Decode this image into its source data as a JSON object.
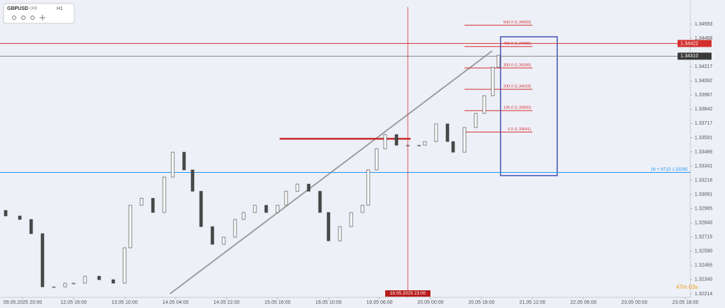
{
  "chart_data": {
    "type": "candlestick",
    "symbol": "GBPUSD",
    "instrument_type": "CFD",
    "timeframe": "H1",
    "countdown": "47m 03s",
    "x": [
      -6,
      -1,
      3,
      7,
      11,
      15,
      18,
      22,
      27,
      32,
      36,
      38,
      42,
      46,
      50,
      53,
      57,
      60,
      63,
      67,
      71,
      75,
      78,
      82,
      86,
      90,
      93,
      97,
      101,
      105,
      108,
      112,
      116,
      120,
      122,
      125,
      128,
      132,
      136,
      140,
      142,
      146,
      150,
      152,
      156,
      160,
      163,
      166,
      168
    ],
    "open": [
      1.3295,
      1.32901,
      1.3287,
      1.32745,
      1.32276,
      1.32276,
      1.32308,
      1.32308,
      1.3237,
      1.32339,
      1.32308,
      1.3262,
      1.32995,
      1.33057,
      1.32932,
      1.33244,
      1.33463,
      1.33307,
      1.33119,
      1.32807,
      1.32651,
      1.32714,
      1.3287,
      1.32932,
      1.32995,
      1.32932,
      1.32995,
      1.33119,
      1.33182,
      1.33119,
      1.32932,
      1.32682,
      1.32807,
      1.32932,
      1.32995,
      1.33307,
      1.33494,
      1.33619,
      1.33525,
      1.33525,
      1.33525,
      1.33557,
      1.33713,
      1.33557,
      1.33463,
      1.33681,
      1.33806,
      1.33962,
      1.34212
    ],
    "close": [
      1.32901,
      1.3287,
      1.32745,
      1.32276,
      1.32276,
      1.32308,
      1.32308,
      1.3237,
      1.32339,
      1.32308,
      1.3262,
      1.32995,
      1.33057,
      1.32932,
      1.33244,
      1.33463,
      1.33307,
      1.33119,
      1.32807,
      1.32651,
      1.32714,
      1.3287,
      1.32932,
      1.32995,
      1.32932,
      1.32995,
      1.33119,
      1.33182,
      1.33119,
      1.32932,
      1.32682,
      1.32807,
      1.32932,
      1.32995,
      1.33307,
      1.33494,
      1.33619,
      1.33525,
      1.33525,
      1.33525,
      1.33557,
      1.33713,
      1.33557,
      1.33463,
      1.33681,
      1.33806,
      1.33962,
      1.34212,
      1.34318
    ],
    "up_color": "#ffffff",
    "down_color": "#4a4a4a",
    "xlim": [
      -8,
      235.75
    ],
    "xticks": [
      {
        "value": 0,
        "label": "09.05.2025 20:00"
      },
      {
        "value": 18,
        "label": "12.05 16:00"
      },
      {
        "value": 36,
        "label": "13.05 10:00"
      },
      {
        "value": 54,
        "label": "14.05 04:00"
      },
      {
        "value": 72,
        "label": "14.05 22:00"
      },
      {
        "value": 90,
        "label": "15.05 16:00"
      },
      {
        "value": 108,
        "label": "16.05 10:00"
      },
      {
        "value": 126,
        "label": "19.05 06:00"
      },
      {
        "value": 144,
        "label": "20.05 00:00"
      },
      {
        "value": 162,
        "label": "20.05 18:00"
      },
      {
        "value": 180,
        "label": "21.05 12:00"
      },
      {
        "value": 198,
        "label": "22.05 06:00"
      },
      {
        "value": 216,
        "label": "23.05 00:00"
      },
      {
        "value": 234,
        "label": "23.05 18:00"
      }
    ],
    "ylim": [
      1.32183,
      1.34743
    ],
    "yticks": [
      {
        "value": 1.34593,
        "label": "1.34593"
      },
      {
        "value": 1.34468,
        "label": "1.34468"
      },
      {
        "value": 1.34217,
        "label": "1.34217"
      },
      {
        "value": 1.34092,
        "label": "1.34092"
      },
      {
        "value": 1.33967,
        "label": "1.33967"
      },
      {
        "value": 1.33842,
        "label": "1.33842"
      },
      {
        "value": 1.33717,
        "label": "1.33717"
      },
      {
        "value": 1.33591,
        "label": "1.33591"
      },
      {
        "value": 1.33466,
        "label": "1.33466"
      },
      {
        "value": 1.33341,
        "label": "1.33341"
      },
      {
        "value": 1.33216,
        "label": "1.33216"
      },
      {
        "value": 1.33091,
        "label": "1.33091"
      },
      {
        "value": 1.32965,
        "label": "1.32965"
      },
      {
        "value": 1.3284,
        "label": "1.32840"
      },
      {
        "value": 1.32715,
        "label": "1.32715"
      },
      {
        "value": 1.3259,
        "label": "1.32590"
      },
      {
        "value": 1.32465,
        "label": "1.32465"
      },
      {
        "value": 1.3234,
        "label": "1.32340"
      },
      {
        "value": 1.32214,
        "label": "1.32214"
      }
    ],
    "hlines": [
      {
        "value": 1.34422,
        "label": "1.34422",
        "color": "#d32f2f"
      },
      {
        "value": 1.3431,
        "label": "1.34310",
        "color": "#888888"
      },
      {
        "value": 1.33285,
        "label": "(N + NT)/2 1.33285",
        "color": "#2196f3"
      }
    ],
    "crosshair": {
      "x": 136,
      "label": "19.05.2025 23:00",
      "color": "#d32f2f"
    },
    "fib": {
      "x": [
        156,
        180
      ],
      "color": "#d32f2f",
      "levels": [
        {
          "value": 1.33641,
          "label": "0.0 (1.33641)"
        },
        {
          "value": 1.3383,
          "label": "100.0 (1.33830)"
        },
        {
          "value": 1.34018,
          "label": "200.0 (1.34018)"
        },
        {
          "value": 1.34206,
          "label": "300.0 (1.34206)"
        },
        {
          "value": 1.34395,
          "label": "400.0 (1.34395)"
        },
        {
          "value": 1.34583,
          "label": "500.0 (1.34583)"
        }
      ]
    }
  }
}
